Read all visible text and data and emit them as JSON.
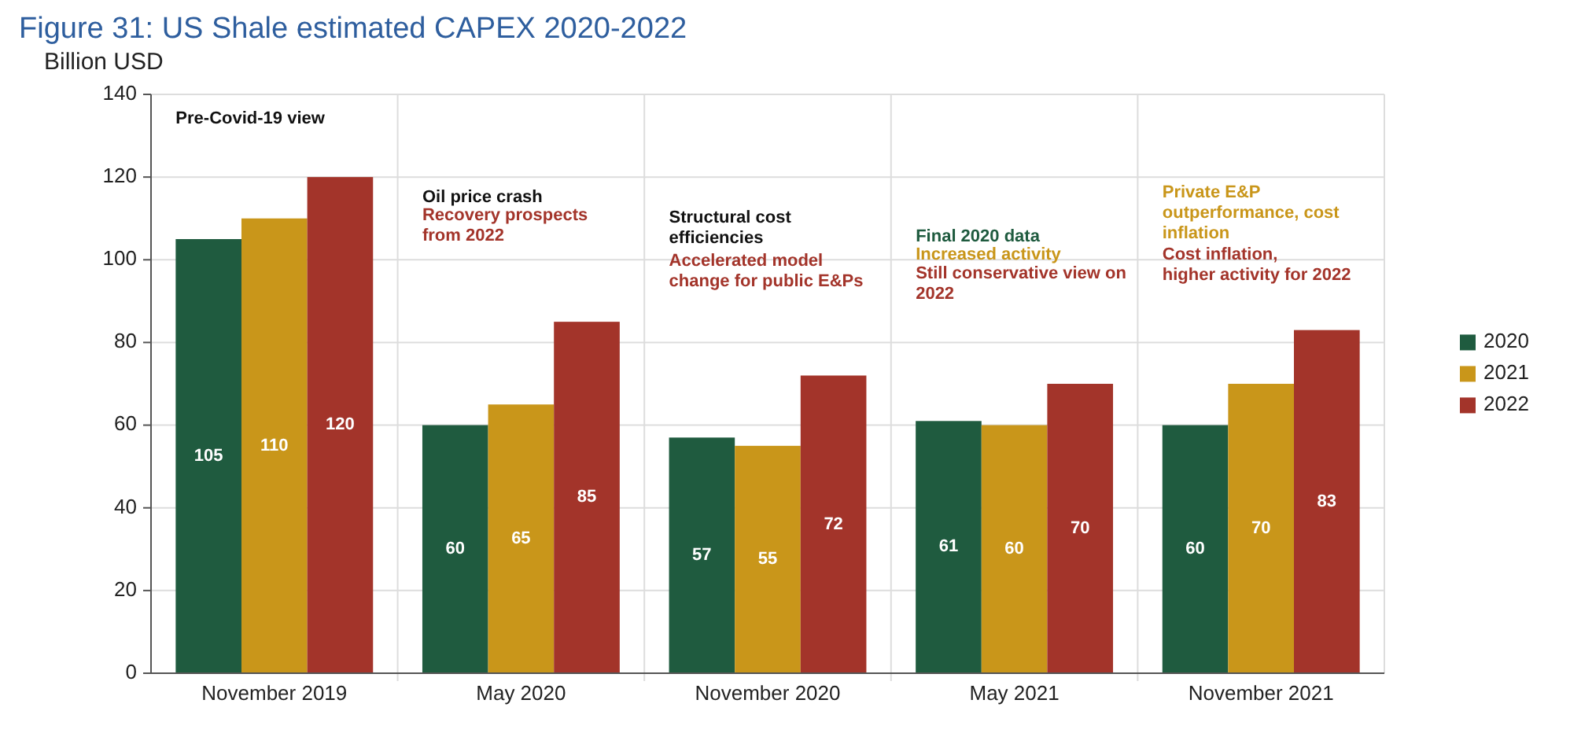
{
  "chart_data": {
    "type": "bar",
    "title": "Figure 31: US Shale estimated CAPEX 2020-2022",
    "ylabel": "Billion USD",
    "categories": [
      "November 2019",
      "May 2020",
      "November 2020",
      "May 2021",
      "November 2021"
    ],
    "series": [
      {
        "name": "2020",
        "color": "#1f5b3f",
        "values": [
          105,
          60,
          57,
          61,
          60
        ]
      },
      {
        "name": "2021",
        "color": "#c9961a",
        "values": [
          110,
          65,
          55,
          60,
          70
        ]
      },
      {
        "name": "2022",
        "color": "#a3342a",
        "values": [
          120,
          85,
          72,
          70,
          83
        ]
      }
    ],
    "ylim": [
      0,
      140
    ],
    "yticks": [
      0,
      20,
      40,
      60,
      80,
      100,
      120,
      140
    ],
    "grid": "y",
    "legend": "right",
    "data_labels": true,
    "annotations": [
      "Pre-Covid-19 view",
      "Oil price crash",
      "Recovery prospects\nfrom 2022",
      "Structural cost\nefficiencies",
      "Accelerated model\nchange for public E&Ps",
      "Final 2020 data",
      "Increased activity",
      "Still conservative view on\n2022",
      "Private E&P\noutperformance, cost\ninflation",
      "Cost inflation,\nhigher activity for 2022"
    ]
  }
}
